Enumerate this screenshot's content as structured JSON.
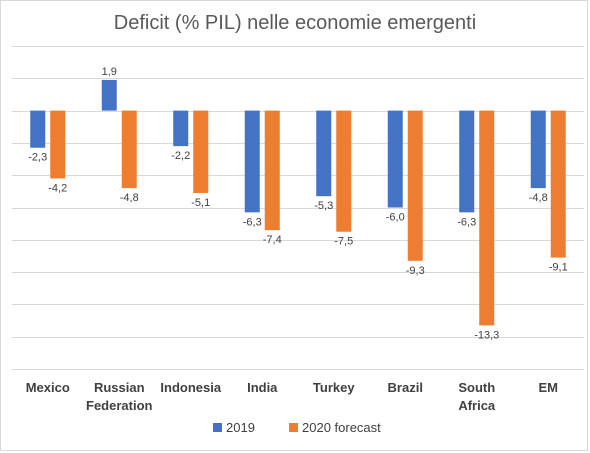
{
  "chart_data": {
    "type": "bar",
    "title": "Deficit (% PIL)  nelle economie emergenti",
    "categories": [
      "Mexico",
      "Russian\nFederation",
      "Indonesia",
      "India",
      "Turkey",
      "Brazil",
      "South\nAfrica",
      "EM"
    ],
    "series": [
      {
        "name": "2019",
        "color": "#4472C4",
        "values": [
          -2.3,
          1.9,
          -2.2,
          -6.3,
          -5.3,
          -6.0,
          -6.3,
          -4.8
        ],
        "labels": [
          "-2,3",
          "1,9",
          "-2,2",
          "-6,3",
          "-5,3",
          "-6,0",
          "-6,3",
          "-4,8"
        ]
      },
      {
        "name": "2020 forecast",
        "color": "#ED7D31",
        "values": [
          -4.2,
          -4.8,
          -5.1,
          -7.4,
          -7.5,
          -9.3,
          -13.3,
          -9.1
        ],
        "labels": [
          "-4,2",
          "-4,8",
          "-5,1",
          "-7,4",
          "-7,5",
          "-9,3",
          "-13,3",
          "-9,1"
        ]
      }
    ],
    "ylim": [
      -16,
      4
    ],
    "grid": true,
    "legend": "bottom"
  }
}
